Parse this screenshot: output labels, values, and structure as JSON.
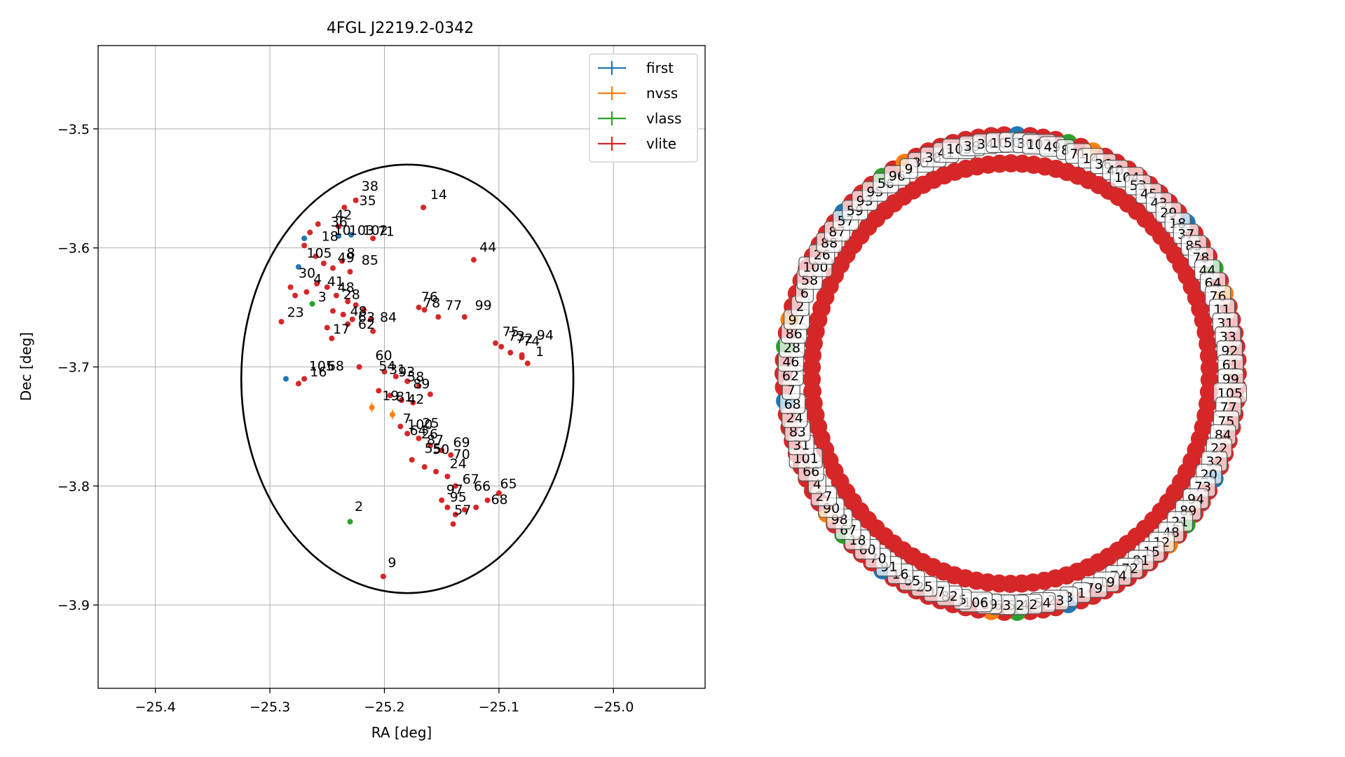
{
  "chart_data": [
    {
      "type": "scatter",
      "title": "4FGL J2219.2-0342",
      "xlabel": "RA [deg]",
      "ylabel": "Dec [deg]",
      "xlim": [
        -25.45,
        -24.92
      ],
      "ylim": [
        -3.97,
        -3.43
      ],
      "x_ticks": [
        -25.4,
        -25.3,
        -25.2,
        -25.1,
        -25.0
      ],
      "x_tick_labels": [
        "−25.4",
        "−25.3",
        "−25.2",
        "−25.1",
        "−25.0"
      ],
      "y_ticks": [
        -3.5,
        -3.6,
        -3.7,
        -3.8,
        -3.9
      ],
      "y_tick_labels": [
        "−3.5",
        "−3.6",
        "−3.7",
        "−3.8",
        "−3.9"
      ],
      "grid": true,
      "legend_position": "top-right",
      "series": [
        {
          "name": "first",
          "color": "#1f77b4",
          "points": [
            {
              "x": -25.286,
              "y": -3.71
            },
            {
              "x": -25.27,
              "y": -3.592
            },
            {
              "x": -25.275,
              "y": -3.616
            },
            {
              "x": -25.24,
              "y": -3.59
            },
            {
              "x": -25.229,
              "y": -3.589
            }
          ]
        },
        {
          "name": "nvss",
          "color": "#ff7f0e",
          "points": [
            {
              "x": -25.211,
              "y": -3.734
            },
            {
              "x": -25.193,
              "y": -3.74
            }
          ]
        },
        {
          "name": "vlass",
          "color": "#2ca02c",
          "points": [
            {
              "x": -25.23,
              "y": -3.83
            },
            {
              "x": -25.263,
              "y": -3.647
            }
          ]
        },
        {
          "name": "vlite",
          "color": "#d62728",
          "points": [
            {
              "x": -25.225,
              "y": -3.56
            },
            {
              "x": -25.235,
              "y": -3.566
            },
            {
              "x": -25.166,
              "y": -3.566
            },
            {
              "x": -25.258,
              "y": -3.58
            },
            {
              "x": -25.265,
              "y": -3.587
            },
            {
              "x": -25.24,
              "y": -3.582
            },
            {
              "x": -25.21,
              "y": -3.592
            },
            {
              "x": -25.27,
              "y": -3.598
            },
            {
              "x": -25.122,
              "y": -3.61
            },
            {
              "x": -25.26,
              "y": -3.607
            },
            {
              "x": -25.253,
              "y": -3.613
            },
            {
              "x": -25.245,
              "y": -3.617
            },
            {
              "x": -25.237,
              "y": -3.611
            },
            {
              "x": -25.23,
              "y": -3.62
            },
            {
              "x": -25.282,
              "y": -3.633
            },
            {
              "x": -25.278,
              "y": -3.64
            },
            {
              "x": -25.268,
              "y": -3.637
            },
            {
              "x": -25.259,
              "y": -3.63
            },
            {
              "x": -25.25,
              "y": -3.633
            },
            {
              "x": -25.242,
              "y": -3.64
            },
            {
              "x": -25.232,
              "y": -3.645
            },
            {
              "x": -25.225,
              "y": -3.648
            },
            {
              "x": -25.218,
              "y": -3.652
            },
            {
              "x": -25.245,
              "y": -3.653
            },
            {
              "x": -25.236,
              "y": -3.656
            },
            {
              "x": -25.228,
              "y": -3.66
            },
            {
              "x": -25.212,
              "y": -3.66
            },
            {
              "x": -25.29,
              "y": -3.662
            },
            {
              "x": -25.25,
              "y": -3.667
            },
            {
              "x": -25.232,
              "y": -3.664
            },
            {
              "x": -25.21,
              "y": -3.67
            },
            {
              "x": -25.246,
              "y": -3.676
            },
            {
              "x": -25.17,
              "y": -3.65
            },
            {
              "x": -25.165,
              "y": -3.652
            },
            {
              "x": -25.153,
              "y": -3.658
            },
            {
              "x": -25.13,
              "y": -3.658
            },
            {
              "x": -25.103,
              "y": -3.68
            },
            {
              "x": -25.098,
              "y": -3.683
            },
            {
              "x": -25.09,
              "y": -3.688
            },
            {
              "x": -25.08,
              "y": -3.692
            },
            {
              "x": -25.075,
              "y": -3.697
            },
            {
              "x": -25.08,
              "y": -3.69
            },
            {
              "x": -25.222,
              "y": -3.7
            },
            {
              "x": -25.2,
              "y": -3.704
            },
            {
              "x": -25.19,
              "y": -3.708
            },
            {
              "x": -25.18,
              "y": -3.712
            },
            {
              "x": -25.17,
              "y": -3.716
            },
            {
              "x": -25.16,
              "y": -3.723
            },
            {
              "x": -25.205,
              "y": -3.72
            },
            {
              "x": -25.195,
              "y": -3.724
            },
            {
              "x": -25.185,
              "y": -3.728
            },
            {
              "x": -25.175,
              "y": -3.73
            },
            {
              "x": -25.27,
              "y": -3.71
            },
            {
              "x": -25.275,
              "y": -3.714
            },
            {
              "x": -25.186,
              "y": -3.75
            },
            {
              "x": -25.18,
              "y": -3.756
            },
            {
              "x": -25.17,
              "y": -3.76
            },
            {
              "x": -25.16,
              "y": -3.766
            },
            {
              "x": -25.15,
              "y": -3.77
            },
            {
              "x": -25.142,
              "y": -3.774
            },
            {
              "x": -25.176,
              "y": -3.778
            },
            {
              "x": -25.165,
              "y": -3.784
            },
            {
              "x": -25.155,
              "y": -3.788
            },
            {
              "x": -25.145,
              "y": -3.792
            },
            {
              "x": -25.138,
              "y": -3.8
            },
            {
              "x": -25.15,
              "y": -3.812
            },
            {
              "x": -25.145,
              "y": -3.818
            },
            {
              "x": -25.138,
              "y": -3.824
            },
            {
              "x": -25.13,
              "y": -3.82
            },
            {
              "x": -25.12,
              "y": -3.818
            },
            {
              "x": -25.11,
              "y": -3.812
            },
            {
              "x": -25.1,
              "y": -3.806
            },
            {
              "x": -25.14,
              "y": -3.832
            },
            {
              "x": -25.201,
              "y": -3.876
            }
          ]
        }
      ],
      "point_labels": [
        {
          "text": "38",
          "x": -25.22,
          "y": -3.552
        },
        {
          "text": "35",
          "x": -25.222,
          "y": -3.564
        },
        {
          "text": "14",
          "x": -25.16,
          "y": -3.559
        },
        {
          "text": "42",
          "x": -25.243,
          "y": -3.576
        },
        {
          "text": "36",
          "x": -25.247,
          "y": -3.582
        },
        {
          "text": "10",
          "x": -25.244,
          "y": -3.589
        },
        {
          "text": "103",
          "x": -25.231,
          "y": -3.589
        },
        {
          "text": "102",
          "x": -25.219,
          "y": -3.589
        },
        {
          "text": "71",
          "x": -25.206,
          "y": -3.59
        },
        {
          "text": "18",
          "x": -25.255,
          "y": -3.594
        },
        {
          "text": "44",
          "x": -25.117,
          "y": -3.603
        },
        {
          "text": "105",
          "x": -25.268,
          "y": -3.608
        },
        {
          "text": "8",
          "x": -25.233,
          "y": -3.608
        },
        {
          "text": "49",
          "x": -25.241,
          "y": -3.612
        },
        {
          "text": "85",
          "x": -25.22,
          "y": -3.614
        },
        {
          "text": "30",
          "x": -25.275,
          "y": -3.625
        },
        {
          "text": "4",
          "x": -25.262,
          "y": -3.63
        },
        {
          "text": "41",
          "x": -25.25,
          "y": -3.632
        },
        {
          "text": "3",
          "x": -25.258,
          "y": -3.645
        },
        {
          "text": "48",
          "x": -25.241,
          "y": -3.637
        },
        {
          "text": "28",
          "x": -25.236,
          "y": -3.643
        },
        {
          "text": "76",
          "x": -25.168,
          "y": -3.645
        },
        {
          "text": "78",
          "x": -25.166,
          "y": -3.65
        },
        {
          "text": "77",
          "x": -25.147,
          "y": -3.652
        },
        {
          "text": "99",
          "x": -25.121,
          "y": -3.652
        },
        {
          "text": "23",
          "x": -25.285,
          "y": -3.658
        },
        {
          "text": "48",
          "x": -25.23,
          "y": -3.657
        },
        {
          "text": "63",
          "x": -25.223,
          "y": -3.662
        },
        {
          "text": "84",
          "x": -25.204,
          "y": -3.662
        },
        {
          "text": "62",
          "x": -25.223,
          "y": -3.668
        },
        {
          "text": "17",
          "x": -25.245,
          "y": -3.672
        },
        {
          "text": "75",
          "x": -25.097,
          "y": -3.674
        },
        {
          "text": "73",
          "x": -25.092,
          "y": -3.678
        },
        {
          "text": "72",
          "x": -25.085,
          "y": -3.68
        },
        {
          "text": "74",
          "x": -25.079,
          "y": -3.682
        },
        {
          "text": "94",
          "x": -25.067,
          "y": -3.677
        },
        {
          "text": "1",
          "x": -25.068,
          "y": -3.691
        },
        {
          "text": "60",
          "x": -25.208,
          "y": -3.694
        },
        {
          "text": "105",
          "x": -25.266,
          "y": -3.703
        },
        {
          "text": "68",
          "x": -25.25,
          "y": -3.703
        },
        {
          "text": "16",
          "x": -25.265,
          "y": -3.708
        },
        {
          "text": "54",
          "x": -25.205,
          "y": -3.703
        },
        {
          "text": "31",
          "x": -25.196,
          "y": -3.706
        },
        {
          "text": "93",
          "x": -25.188,
          "y": -3.708
        },
        {
          "text": "58",
          "x": -25.18,
          "y": -3.712
        },
        {
          "text": "89",
          "x": -25.175,
          "y": -3.718
        },
        {
          "text": "19",
          "x": -25.202,
          "y": -3.728
        },
        {
          "text": "81",
          "x": -25.19,
          "y": -3.729
        },
        {
          "text": "42",
          "x": -25.18,
          "y": -3.731
        },
        {
          "text": "7",
          "x": -25.184,
          "y": -3.747
        },
        {
          "text": "100",
          "x": -25.18,
          "y": -3.752
        },
        {
          "text": "25",
          "x": -25.167,
          "y": -3.751
        },
        {
          "text": "64",
          "x": -25.178,
          "y": -3.757
        },
        {
          "text": "26",
          "x": -25.168,
          "y": -3.76
        },
        {
          "text": "87",
          "x": -25.163,
          "y": -3.765
        },
        {
          "text": "69",
          "x": -25.14,
          "y": -3.767
        },
        {
          "text": "55",
          "x": -25.165,
          "y": -3.772
        },
        {
          "text": "50",
          "x": -25.158,
          "y": -3.773
        },
        {
          "text": "70",
          "x": -25.14,
          "y": -3.777
        },
        {
          "text": "24",
          "x": -25.143,
          "y": -3.785
        },
        {
          "text": "67",
          "x": -25.132,
          "y": -3.798
        },
        {
          "text": "66",
          "x": -25.122,
          "y": -3.804
        },
        {
          "text": "65",
          "x": -25.099,
          "y": -3.802
        },
        {
          "text": "97",
          "x": -25.146,
          "y": -3.807
        },
        {
          "text": "95",
          "x": -25.143,
          "y": -3.813
        },
        {
          "text": "68",
          "x": -25.107,
          "y": -3.815
        },
        {
          "text": "57",
          "x": -25.139,
          "y": -3.824
        },
        {
          "text": "2",
          "x": -25.226,
          "y": -3.821
        },
        {
          "text": "9",
          "x": -25.197,
          "y": -3.868
        }
      ],
      "ellipse": {
        "center_x": -25.18,
        "center_y": -3.71,
        "semi_width": 0.145,
        "semi_height": 0.18,
        "color": "#000000"
      }
    },
    {
      "type": "scatter",
      "description_free": true,
      "ring_labels": [
        "35",
        "38",
        "41",
        "103",
        "39",
        "34",
        "10",
        "50",
        "30",
        "102",
        "49",
        "8",
        "71",
        "14",
        "36",
        "40",
        "104",
        "53",
        "45",
        "43",
        "29",
        "18",
        "37",
        "85",
        "78",
        "44",
        "64",
        "76",
        "11",
        "31",
        "33",
        "92",
        "61",
        "99",
        "105",
        "77",
        "75",
        "84",
        "22",
        "32",
        "20",
        "73",
        "94",
        "89",
        "21",
        "48",
        "12",
        "15",
        "81",
        "72",
        "74",
        "19",
        "79",
        "1",
        "3",
        "23",
        "54",
        "42",
        "52",
        "63",
        "69",
        "106",
        "5",
        "82",
        "17",
        "25",
        "65",
        "16",
        "91",
        "70",
        "60",
        "18",
        "67",
        "98",
        "90",
        "27",
        "4",
        "66",
        "101",
        "31",
        "83",
        "24",
        "68",
        "7",
        "62",
        "46",
        "28",
        "86",
        "97",
        "2",
        "6",
        "58",
        "100",
        "26",
        "88",
        "87",
        "57",
        "59",
        "93",
        "95",
        "56",
        "96",
        "9"
      ]
    }
  ]
}
